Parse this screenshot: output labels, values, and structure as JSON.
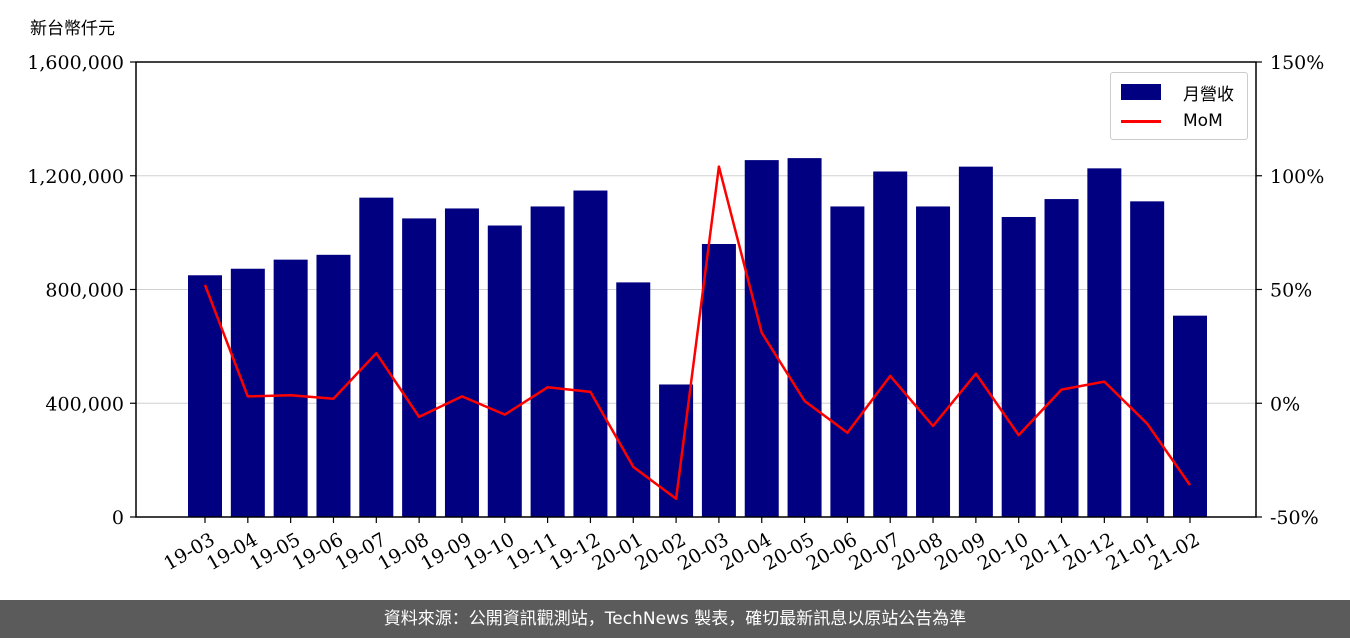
{
  "chart_data": {
    "type": "bar",
    "categories": [
      "19-03",
      "19-04",
      "19-05",
      "19-06",
      "19-07",
      "19-08",
      "19-09",
      "19-10",
      "19-11",
      "19-12",
      "20-01",
      "20-02",
      "20-03",
      "20-04",
      "20-05",
      "20-06",
      "20-07",
      "20-08",
      "20-09",
      "20-10",
      "20-11",
      "20-12",
      "21-01",
      "21-02"
    ],
    "series": [
      {
        "name": "月營收",
        "kind": "bar",
        "axis": "left",
        "color": "#000080",
        "values": [
          850000,
          873000,
          905000,
          922000,
          1123000,
          1050000,
          1085000,
          1025000,
          1092000,
          1148000,
          825000,
          466000,
          960000,
          1255000,
          1262000,
          1092000,
          1215000,
          1092000,
          1232000,
          1055000,
          1118000,
          1226000,
          1110000,
          708000
        ]
      },
      {
        "name": "MoM",
        "kind": "line",
        "axis": "right",
        "color": "#ff0000",
        "values": [
          52,
          3,
          3.5,
          2,
          22,
          -6,
          3,
          -5,
          7,
          5,
          -28,
          -42,
          104,
          31,
          1,
          -13,
          12,
          -10,
          13,
          -14,
          6,
          9.5,
          -9,
          -36
        ]
      }
    ],
    "ylabel_left": "新台幣仟元",
    "ylim_left": [
      0,
      1600000
    ],
    "yticks_left": [
      "0",
      "400,000",
      "800,000",
      "1,200,000",
      "1,600,000"
    ],
    "ylim_right": [
      -50,
      150
    ],
    "yticks_right": [
      "-50%",
      "0%",
      "50%",
      "100%",
      "150%"
    ],
    "grid": "horizontal",
    "legend_position": "top-right"
  },
  "footer": {
    "source_text": "資料來源：公開資訊觀測站，TechNews 製表，確切最新訊息以原站公告為準"
  },
  "watermark": {
    "text": "TechNews"
  }
}
